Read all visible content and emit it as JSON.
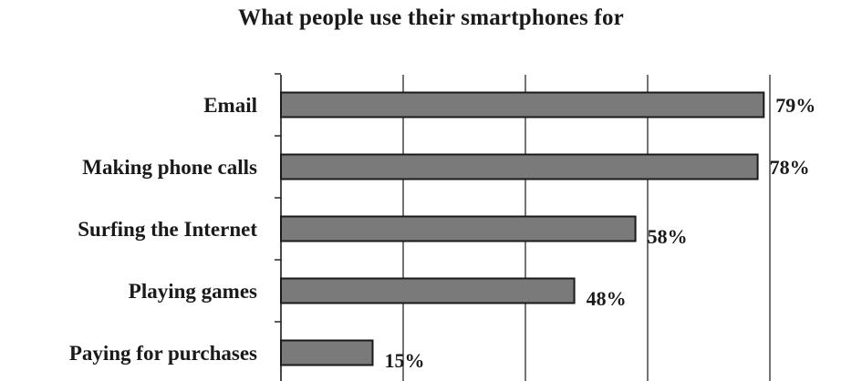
{
  "chart_data": {
    "type": "bar",
    "orientation": "horizontal",
    "title": "What people use their smartphones for",
    "categories": [
      "Email",
      "Making phone calls",
      "Surfing the Internet",
      "Playing games",
      "Paying for purchases"
    ],
    "values": [
      79,
      78,
      58,
      48,
      15
    ],
    "value_labels": [
      "79%",
      "78%",
      "58%",
      "48%",
      "15%"
    ],
    "xlim": [
      0,
      80
    ],
    "grid": true,
    "bar_color": "#7a7a7a"
  }
}
